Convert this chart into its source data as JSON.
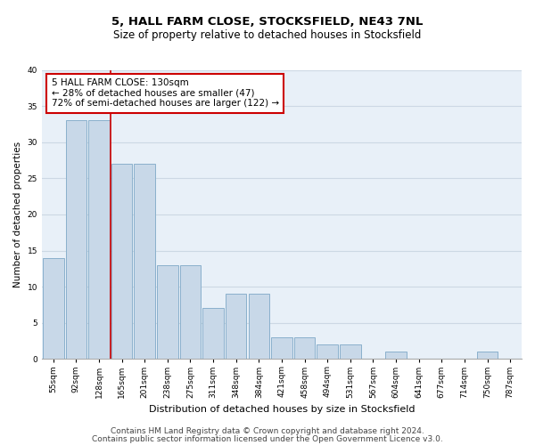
{
  "title": "5, HALL FARM CLOSE, STOCKSFIELD, NE43 7NL",
  "subtitle": "Size of property relative to detached houses in Stocksfield",
  "xlabel": "Distribution of detached houses by size in Stocksfield",
  "ylabel": "Number of detached properties",
  "categories": [
    "55sqm",
    "92sqm",
    "128sqm",
    "165sqm",
    "201sqm",
    "238sqm",
    "275sqm",
    "311sqm",
    "348sqm",
    "384sqm",
    "421sqm",
    "458sqm",
    "494sqm",
    "531sqm",
    "567sqm",
    "604sqm",
    "641sqm",
    "677sqm",
    "714sqm",
    "750sqm",
    "787sqm"
  ],
  "values": [
    14,
    33,
    33,
    27,
    27,
    13,
    13,
    7,
    9,
    9,
    3,
    3,
    2,
    2,
    0,
    1,
    0,
    0,
    0,
    1,
    0
  ],
  "bar_color": "#c8d8e8",
  "bar_edge_color": "#8ab0cc",
  "property_line_x": 2.5,
  "annotation_text": "5 HALL FARM CLOSE: 130sqm\n← 28% of detached houses are smaller (47)\n72% of semi-detached houses are larger (122) →",
  "annotation_box_color": "#ffffff",
  "annotation_box_edge": "#cc0000",
  "vline_color": "#cc0000",
  "ylim": [
    0,
    40
  ],
  "yticks": [
    0,
    5,
    10,
    15,
    20,
    25,
    30,
    35,
    40
  ],
  "grid_color": "#ccd8e4",
  "bg_color": "#e8f0f8",
  "footer1": "Contains HM Land Registry data © Crown copyright and database right 2024.",
  "footer2": "Contains public sector information licensed under the Open Government Licence v3.0.",
  "title_fontsize": 9.5,
  "subtitle_fontsize": 8.5,
  "xlabel_fontsize": 8,
  "ylabel_fontsize": 7.5,
  "tick_fontsize": 6.5,
  "annotation_fontsize": 7.5,
  "footer_fontsize": 6.5
}
